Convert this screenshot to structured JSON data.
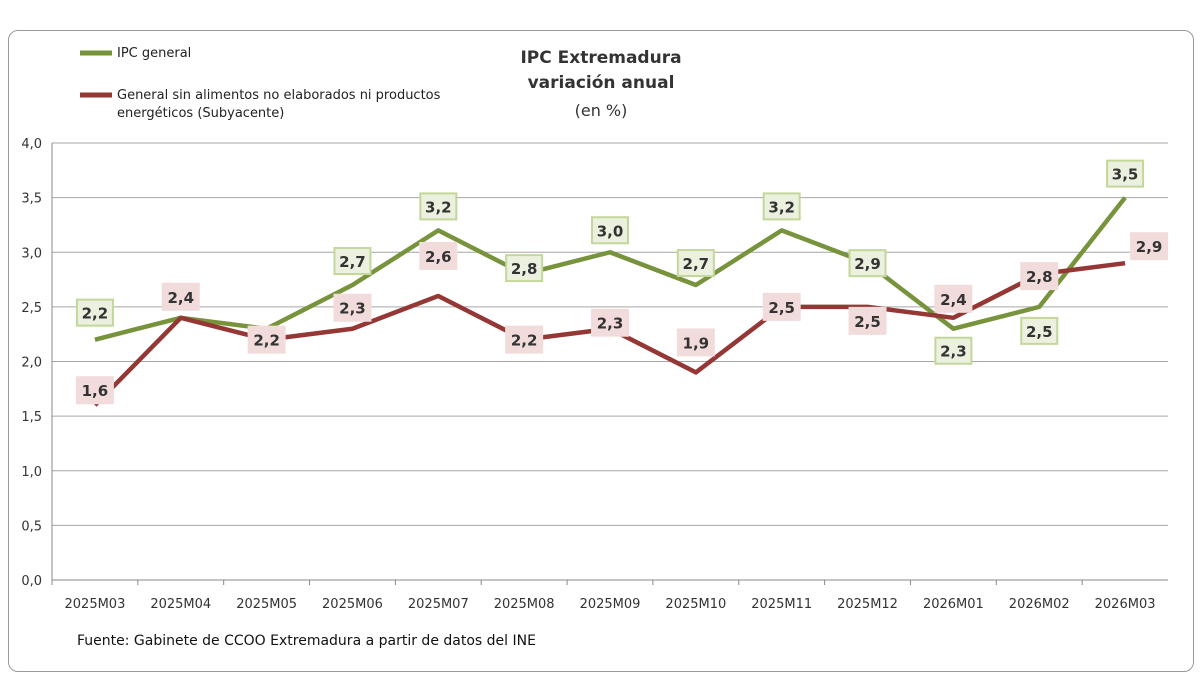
{
  "chart_data": {
    "type": "line",
    "title": "IPC Extremadura",
    "subtitle": "variación anual",
    "subtitle2": "(en %)",
    "source": "Fuente: Gabinete de CCOO Extremadura a partir de datos del INE",
    "categories": [
      "2025M03",
      "2025M04",
      "2025M05",
      "2025M06",
      "2025M07",
      "2025M08",
      "2025M09",
      "2025M10",
      "2025M11",
      "2025M12",
      "2026M01",
      "2026M02",
      "2026M03"
    ],
    "ylim": [
      0,
      4
    ],
    "yticks": [
      "0,0",
      "0,5",
      "1,0",
      "1,5",
      "2,0",
      "2,5",
      "3,0",
      "3,5",
      "4,0"
    ],
    "grid": true,
    "legend": "top-left",
    "series": [
      {
        "name": "IPC general",
        "color": "#77933c",
        "label_bg": "#ebf1de",
        "label_border": "#c4d79b",
        "values": [
          2.2,
          2.4,
          2.3,
          2.7,
          3.2,
          2.8,
          3.0,
          2.7,
          3.2,
          2.9,
          2.3,
          2.5,
          3.5
        ]
      },
      {
        "name": "General sin alimentos no elaborados ni productos energéticos (Subyacente)",
        "color": "#953735",
        "label_bg": "#f2dcdb",
        "label_border": "#f2dcdb",
        "values": [
          1.6,
          2.4,
          2.2,
          2.3,
          2.6,
          2.2,
          2.3,
          1.9,
          2.5,
          2.5,
          2.4,
          2.8,
          2.9
        ]
      }
    ]
  }
}
